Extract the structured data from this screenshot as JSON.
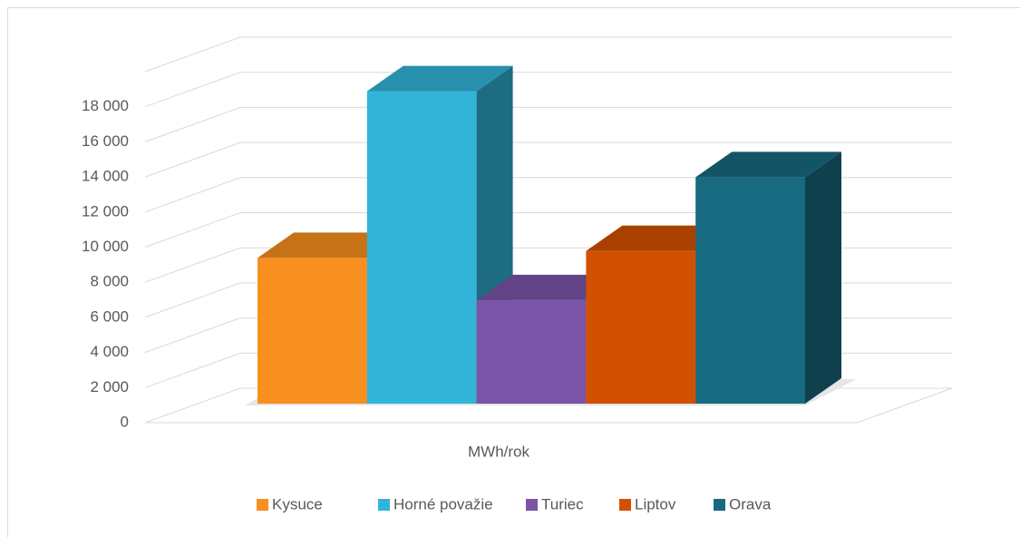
{
  "chart_data": {
    "type": "bar3d",
    "x_label": "MWh/rok",
    "series": [
      {
        "name": "Kysuce",
        "color": "#f7901e",
        "values": [
          8300
        ]
      },
      {
        "name": "Horné považie",
        "color": "#31b4d8",
        "values": [
          17800
        ]
      },
      {
        "name": "Turiec",
        "color": "#7a54a6",
        "values": [
          5900
        ]
      },
      {
        "name": "Liptov",
        "color": "#d25100",
        "values": [
          8700
        ]
      },
      {
        "name": "Orava",
        "color": "#186a80",
        "values": [
          12900
        ]
      }
    ],
    "ylim": [
      0,
      20000
    ],
    "yticks": [
      0,
      {
        "value": 2000,
        "label": "2 000"
      },
      {
        "value": 4000,
        "label": "4 000"
      },
      {
        "value": 6000,
        "label": "6 000"
      },
      {
        "value": 8000,
        "label": "8 000"
      },
      {
        "value": 10000,
        "label": "10 000"
      },
      {
        "value": 12000,
        "label": "12 000"
      },
      {
        "value": 14000,
        "label": "14 000"
      },
      {
        "value": 16000,
        "label": "16 000"
      },
      {
        "value": 18000,
        "label": "18 000"
      }
    ],
    "grid": true,
    "legend": "bottom"
  }
}
